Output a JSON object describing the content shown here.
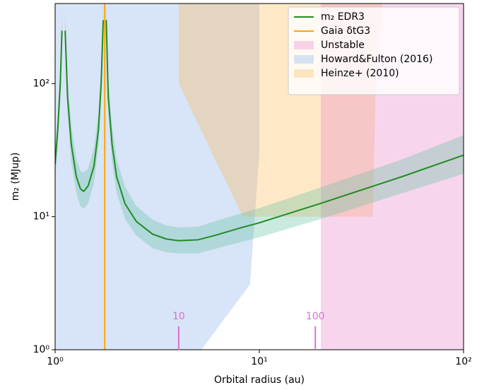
{
  "chart_data": {
    "type": "line",
    "xlabel": "Orbital radius (au)",
    "ylabel": "m₂ (MJup)",
    "xscale": "log",
    "yscale": "log",
    "xlim": [
      1,
      100
    ],
    "ylim": [
      1,
      400
    ],
    "xticks": [
      {
        "value": 1,
        "label": "10⁰"
      },
      {
        "value": 10,
        "label": "10¹"
      },
      {
        "value": 100,
        "label": "10²"
      }
    ],
    "yticks": [
      {
        "value": 1,
        "label": "10⁰"
      },
      {
        "value": 10,
        "label": "10¹"
      },
      {
        "value": 100,
        "label": "10²"
      }
    ],
    "legend": "upper right",
    "series": [
      {
        "name": "m₂ EDR3",
        "color": "#228b22",
        "band_color": "#66c2a4",
        "x": [
          1.0,
          1.03,
          1.06,
          1.08,
          1.1,
          1.12,
          1.15,
          1.2,
          1.27,
          1.33,
          1.38,
          1.45,
          1.55,
          1.63,
          1.68,
          1.72,
          1.75,
          1.78,
          1.82,
          1.9,
          2.0,
          2.2,
          2.5,
          3.0,
          3.5,
          4.0,
          5.0,
          6.0,
          8.0,
          10,
          20,
          50,
          100
        ],
        "values": [
          25,
          45,
          100,
          250,
          null,
          250,
          80,
          35,
          20,
          16.2,
          15.5,
          17,
          24,
          45,
          100,
          300,
          null,
          300,
          80,
          35,
          20,
          12.5,
          9.2,
          7.4,
          6.8,
          6.6,
          6.7,
          7.2,
          8.2,
          9.0,
          12.6,
          20,
          29
        ],
        "lower": [
          19,
          34,
          75,
          190,
          null,
          190,
          60,
          26,
          15,
          12,
          11.5,
          12.5,
          18,
          34,
          75,
          225,
          null,
          225,
          60,
          26,
          15,
          9.6,
          7.2,
          5.8,
          5.4,
          5.3,
          5.3,
          5.7,
          6.4,
          7.0,
          9.6,
          15,
          21
        ],
        "upper": [
          33,
          60,
          135,
          340,
          null,
          340,
          110,
          48,
          27,
          22,
          21.5,
          23,
          33,
          60,
          135,
          400,
          null,
          400,
          110,
          48,
          27,
          16.8,
          12,
          9.5,
          8.6,
          8.3,
          8.4,
          9.2,
          10.5,
          11.6,
          16.6,
          27,
          41
        ]
      },
      {
        "name": "Gaia δtG3",
        "color": "#ffa500",
        "vline": 1.75
      }
    ],
    "regions": [
      {
        "name": "Unstable",
        "color": "#e377c2",
        "x": [
          20,
          100,
          100,
          20
        ],
        "y": [
          1,
          1,
          400,
          400
        ]
      },
      {
        "name": "Howard&Fulton (2016)",
        "color": "#7fa6e6",
        "x": [
          1,
          1,
          10,
          10,
          9,
          5.2
        ],
        "y": [
          1,
          400,
          400,
          30,
          3.1,
          1
        ]
      },
      {
        "name": "Heinze+ (2010)",
        "color": "#ffb347",
        "x": [
          4.03,
          4.03,
          8.3,
          36,
          37,
          40
        ],
        "y": [
          400,
          100,
          10,
          10,
          80,
          400
        ]
      }
    ],
    "annotations": [
      {
        "text": "10",
        "x": 4.03,
        "y": [
          1,
          1.5
        ],
        "color": "#da70d6"
      },
      {
        "text": "100",
        "x": 18.8,
        "y": [
          1,
          1.5
        ],
        "color": "#da70d6"
      }
    ]
  }
}
